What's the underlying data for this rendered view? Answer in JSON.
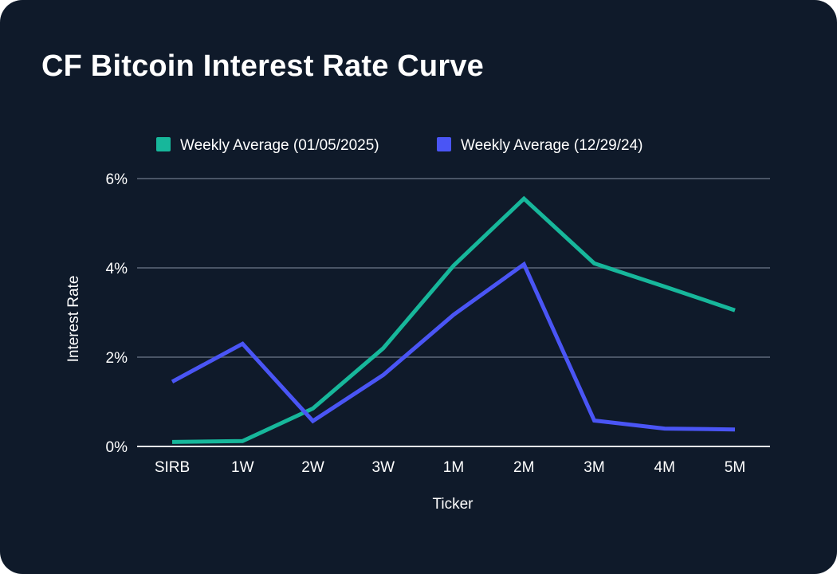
{
  "chart_data": {
    "type": "line",
    "title": "CF Bitcoin Interest Rate Curve",
    "xlabel": "Ticker",
    "ylabel": "Interest Rate",
    "categories": [
      "SIRB",
      "1W",
      "2W",
      "3W",
      "1M",
      "2M",
      "3M",
      "4M",
      "5M"
    ],
    "ylim": [
      0,
      6
    ],
    "yticks": [
      0,
      2,
      4,
      6
    ],
    "ytick_labels": [
      "0%",
      "2%",
      "4%",
      "6%"
    ],
    "grid": true,
    "legend_position": "top-center",
    "series": [
      {
        "name": "Weekly Average (01/05/2025)",
        "color": "#17b79b",
        "values": [
          0.1,
          0.12,
          0.85,
          2.2,
          4.05,
          5.55,
          4.1,
          3.58,
          3.05
        ]
      },
      {
        "name": "Weekly Average (12/29/24)",
        "color": "#4a55f5",
        "values": [
          1.45,
          2.3,
          0.57,
          1.6,
          2.95,
          4.08,
          0.58,
          0.4,
          0.38
        ]
      }
    ]
  }
}
